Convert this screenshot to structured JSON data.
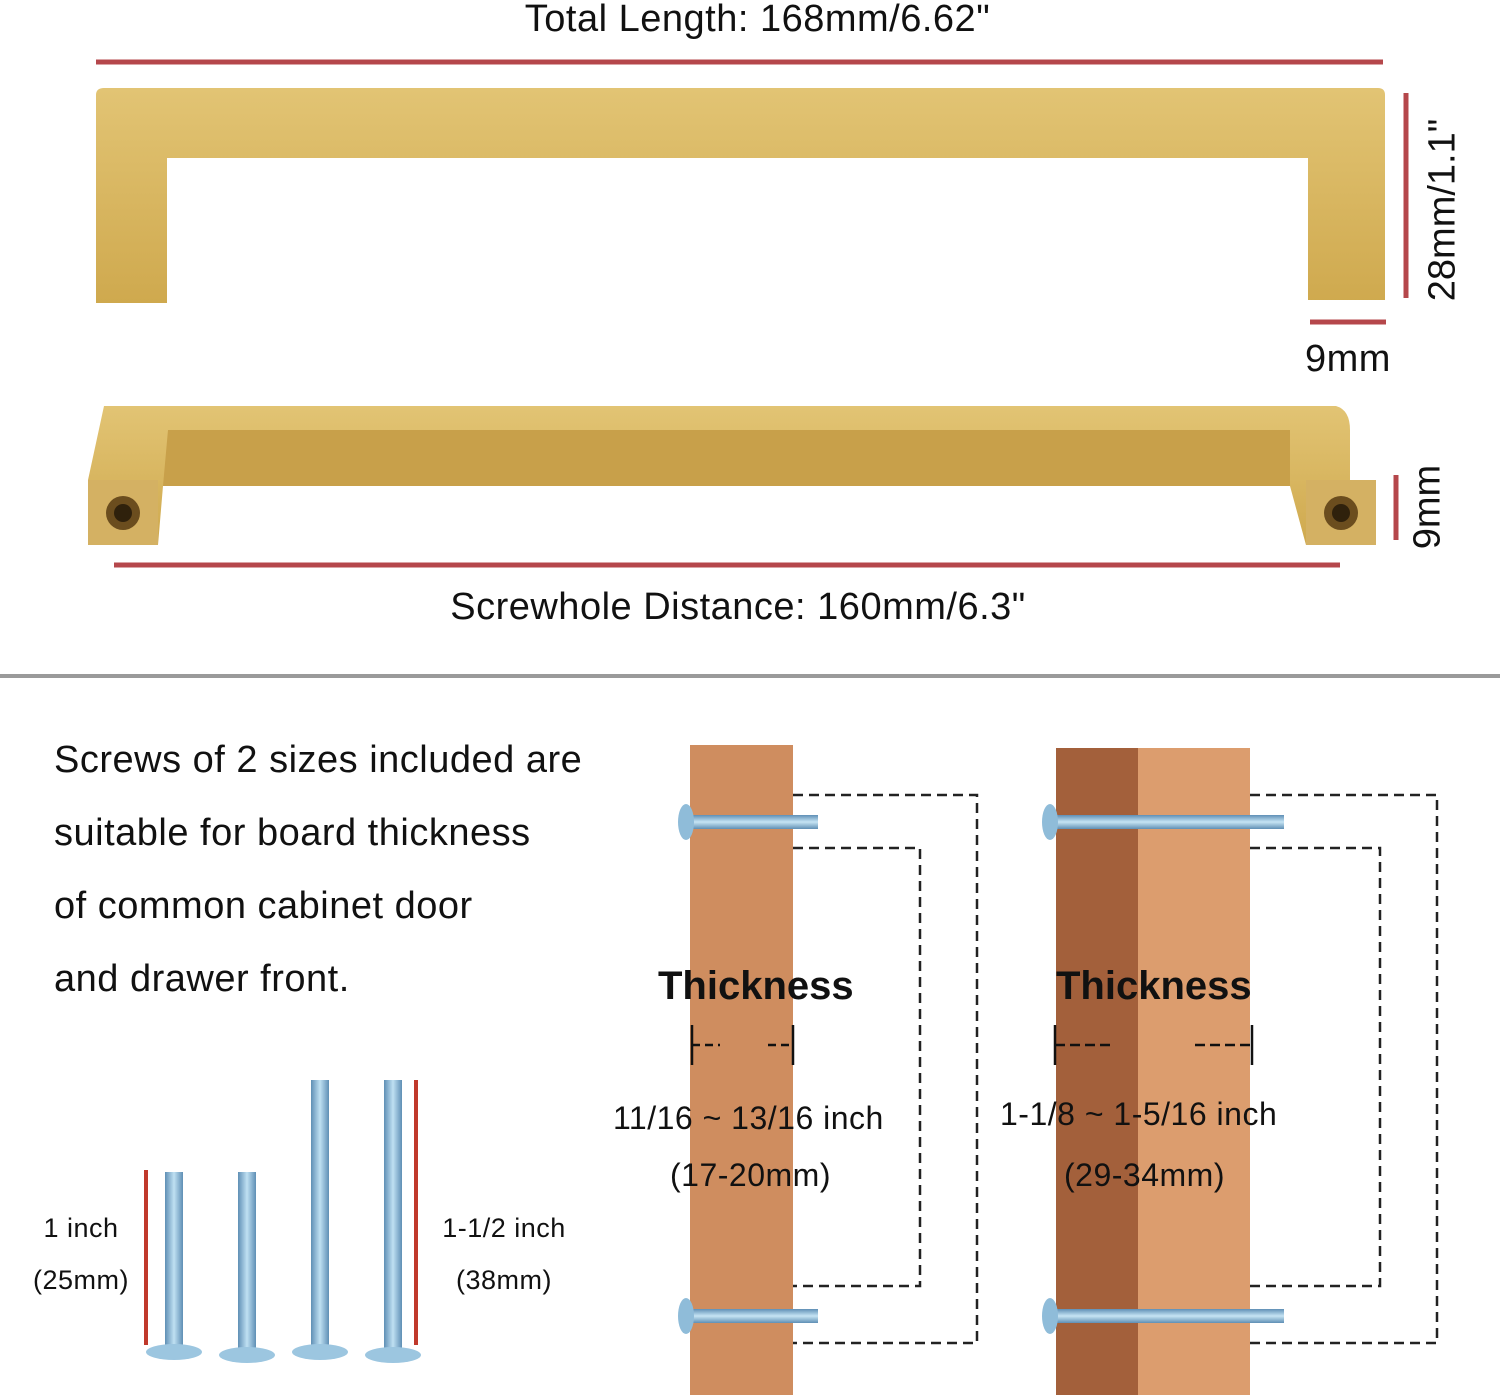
{
  "dimensions": {
    "total_length": "Total Length: 168mm/6.62\"",
    "height": "28mm/1.1\"",
    "bar_width": "9mm",
    "bar_depth": "9mm",
    "screwhole_distance": "Screwhole Distance: 160mm/6.3\""
  },
  "description": [
    "Screws of 2 sizes included are",
    "suitable for board thickness",
    "of common cabinet door",
    "and drawer front."
  ],
  "screws": {
    "short_label": "1 inch",
    "short_mm": "(25mm)",
    "long_label": "1-1/2 inch",
    "long_mm": "(38mm)"
  },
  "boards": [
    {
      "title": "Thickness",
      "range": "11/16 ~ 13/16 inch",
      "mm": "(17-20mm)"
    },
    {
      "title": "Thickness",
      "range": "1-1/8 ~ 1-5/16 inch",
      "mm": "(29-34mm)"
    }
  ],
  "colors": {
    "gold": "#d8b65e",
    "red_line": "#b5474b",
    "wood_light": "#cf8d5f",
    "wood_dark": "#a3603b",
    "screw": "#7fb2d6"
  }
}
